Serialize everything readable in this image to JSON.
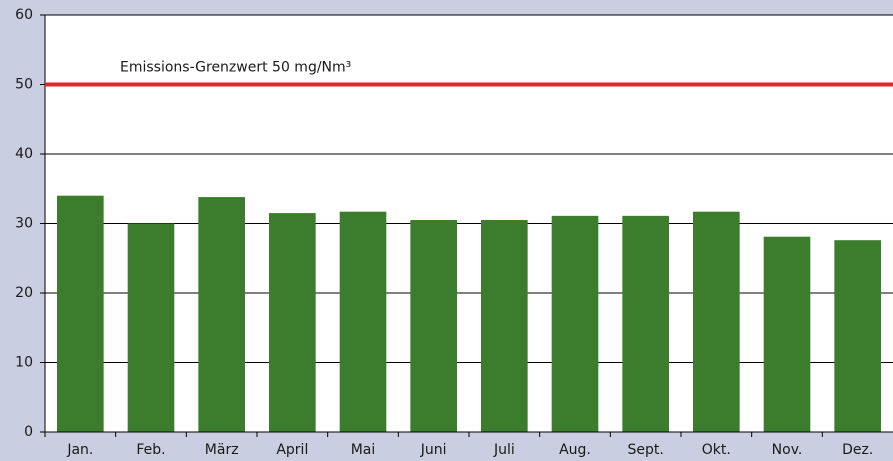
{
  "chart_data": {
    "type": "bar",
    "categories": [
      "Jan.",
      "Feb.",
      "März",
      "April",
      "Mai",
      "Juni",
      "Juli",
      "Aug.",
      "Sept.",
      "Okt.",
      "Nov.",
      "Dez."
    ],
    "values": [
      34,
      30,
      33.8,
      31.5,
      31.7,
      30.5,
      30.5,
      31.1,
      31.1,
      31.7,
      28.1,
      27.6
    ],
    "color": "#3b7d2c",
    "ylim": [
      0,
      60
    ],
    "yticks": [
      0,
      10,
      20,
      30,
      40,
      50,
      60
    ],
    "grid": true,
    "threshold": {
      "value": 50,
      "label": "Emissions-Grenzwert 50 mg/Nm³",
      "color": "#e0262b"
    }
  }
}
